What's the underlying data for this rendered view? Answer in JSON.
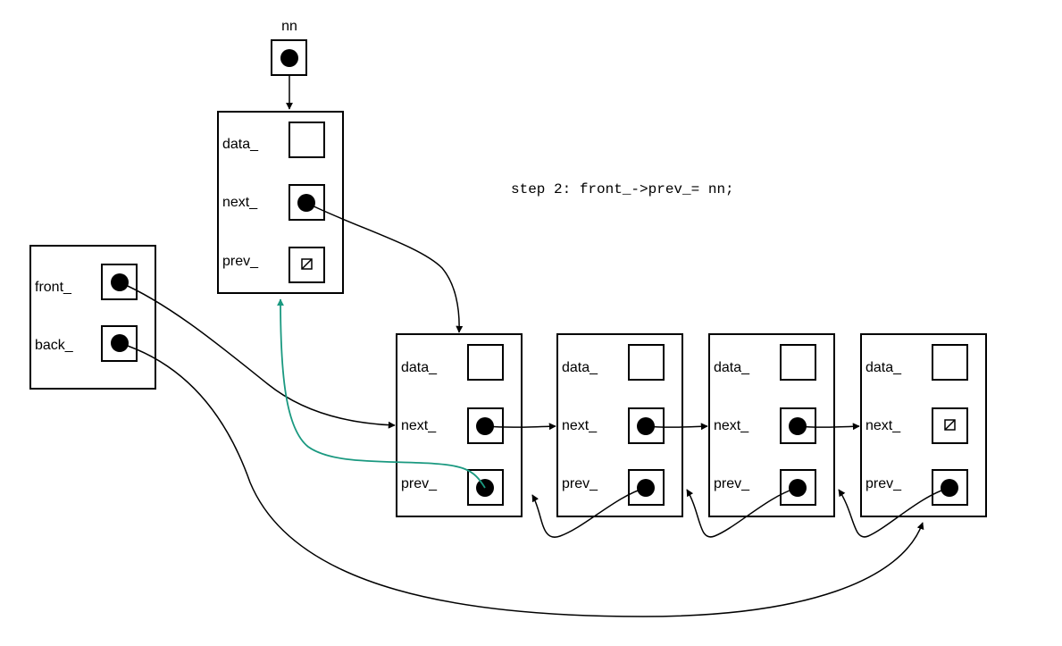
{
  "colors": {
    "line": "#000000",
    "highlight": "#1a9980",
    "background": "#ffffff"
  },
  "caption": "step 2: front_->prev_= nn;",
  "nn_label": "nn",
  "list_fields": {
    "front": "front_",
    "back": "back_"
  },
  "new_node": {
    "data": "data_",
    "next": "next_",
    "prev": "prev_",
    "next_value": "pointer",
    "prev_value": "null"
  },
  "nodes": [
    {
      "data": "data_",
      "next": "next_",
      "prev": "prev_",
      "next_value": "pointer",
      "prev_value": "pointer"
    },
    {
      "data": "data_",
      "next": "next_",
      "prev": "prev_",
      "next_value": "pointer",
      "prev_value": "pointer"
    },
    {
      "data": "data_",
      "next": "next_",
      "prev": "prev_",
      "next_value": "pointer",
      "prev_value": "pointer"
    },
    {
      "data": "data_",
      "next": "next_",
      "prev": "prev_",
      "next_value": "null",
      "prev_value": "pointer"
    }
  ],
  "icons": {
    "pointer": "filled-circle",
    "null": "null-slash-box"
  }
}
